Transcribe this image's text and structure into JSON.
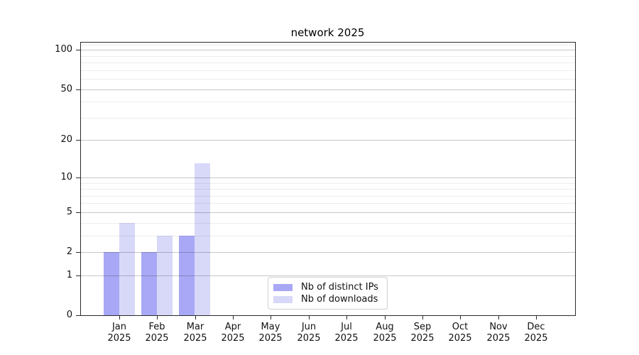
{
  "chart_data": {
    "type": "bar",
    "title": "network 2025",
    "year": "2025",
    "months": [
      "Jan",
      "Feb",
      "Mar",
      "Apr",
      "May",
      "Jun",
      "Jul",
      "Aug",
      "Sep",
      "Oct",
      "Nov",
      "Dec"
    ],
    "categories": [
      "Jan 2025",
      "Feb 2025",
      "Mar 2025",
      "Apr 2025",
      "May 2025",
      "Jun 2025",
      "Jul 2025",
      "Aug 2025",
      "Sep 2025",
      "Oct 2025",
      "Nov 2025",
      "Dec 2025"
    ],
    "series": [
      {
        "name": "Nb of distinct IPs",
        "color": "#a8a8f6",
        "values": [
          2,
          2,
          3,
          0,
          0,
          0,
          0,
          0,
          0,
          0,
          0,
          0
        ]
      },
      {
        "name": "Nb of downloads",
        "color": "#d8d8f9",
        "values": [
          4,
          3,
          13,
          0,
          0,
          0,
          0,
          0,
          0,
          0,
          0,
          0
        ]
      }
    ],
    "yscale": "log1p",
    "ylim": [
      0,
      115
    ],
    "yticks": [
      0,
      1,
      2,
      5,
      10,
      20,
      50,
      100
    ],
    "y_minor_gridlines": [
      3,
      4,
      6,
      7,
      8,
      9,
      30,
      40,
      60,
      70,
      80,
      90,
      110
    ],
    "grid": true,
    "legend_position": "lower-center-inside",
    "xlabel": "",
    "ylabel": ""
  },
  "colors": {
    "background": "#ffffff",
    "spine": "#2b2b2b",
    "major_grid": "rgba(0,0,0,0.22)",
    "minor_grid": "rgba(0,0,0,0.07)",
    "legend_border": "#cfcfcf",
    "text": "#111111"
  }
}
